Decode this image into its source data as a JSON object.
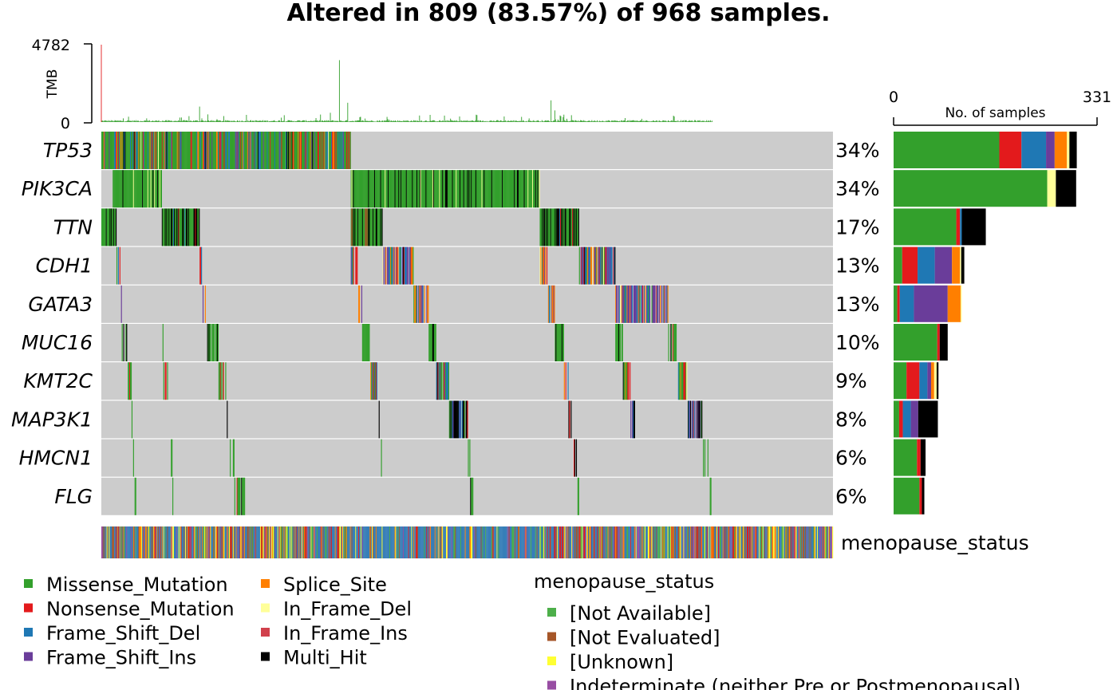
{
  "title": "Altered in 809 (83.57%) of 968 samples.",
  "tmb": {
    "label": "TMB",
    "axis_max_label": "4782",
    "axis_min_label": "0"
  },
  "samples_axis": {
    "label": "No. of samples",
    "min_label": "0",
    "max_label": "331"
  },
  "colors": {
    "Missense_Mutation": "#33a02c",
    "Nonsense_Mutation": "#e31a1c",
    "Frame_Shift_Del": "#1f78b4",
    "Frame_Shift_Ins": "#6a3d9a",
    "Splice_Site": "#ff7f00",
    "In_Frame_Del": "#ffff99",
    "In_Frame_Ins": "#d1404c",
    "Multi_Hit": "#000000",
    "background": "#cccccc",
    "annot_not_available": "#4daf4a",
    "annot_not_evaluated": "#a65628",
    "annot_unknown": "#ffff33",
    "annot_indeterminate": "#984ea3",
    "annot_post": "#377eb8",
    "annot_pre": "#e41a1c",
    "annot_peri": "#ff7f00"
  },
  "legend": {
    "variant_items": [
      "Missense_Mutation",
      "Nonsense_Mutation",
      "Frame_Shift_Del",
      "Frame_Shift_Ins",
      "Splice_Site",
      "In_Frame_Del",
      "In_Frame_Ins",
      "Multi_Hit"
    ],
    "annotation_title": "menopause_status",
    "annotation_items": [
      "[Not Available]",
      "[Not Evaluated]",
      "[Unknown]",
      "Indeterminate (neither Pre or Postmenopausal)"
    ]
  },
  "annotation_track_label": "menopause_status",
  "chart_data": {
    "type": "heatmap",
    "subtype": "oncoplot",
    "title": "Altered in 809 (83.57%) of 968 samples.",
    "total_samples": 968,
    "altered_samples": 809,
    "tmb_max": 4782,
    "barplot_xlim": [
      0,
      331
    ],
    "genes": [
      {
        "name": "TP53",
        "pct": "34%",
        "counts": {
          "Missense_Mutation": 172,
          "Nonsense_Mutation": 36,
          "Frame_Shift_Del": 40,
          "Frame_Shift_Ins": 14,
          "Splice_Site": 20,
          "In_Frame_Del": 4,
          "Multi_Hit": 12
        }
      },
      {
        "name": "PIK3CA",
        "pct": "34%",
        "counts": {
          "Missense_Mutation": 250,
          "In_Frame_Del": 14,
          "Multi_Hit": 33
        }
      },
      {
        "name": "TTN",
        "pct": "17%",
        "counts": {
          "Missense_Mutation": 102,
          "Nonsense_Mutation": 6,
          "Frame_Shift_Del": 3,
          "Multi_Hit": 39
        }
      },
      {
        "name": "CDH1",
        "pct": "13%",
        "counts": {
          "Missense_Mutation": 14,
          "Nonsense_Mutation": 25,
          "Frame_Shift_Del": 28,
          "Frame_Shift_Ins": 28,
          "Splice_Site": 13,
          "In_Frame_Del": 2,
          "Multi_Hit": 5
        }
      },
      {
        "name": "GATA3",
        "pct": "13%",
        "counts": {
          "Missense_Mutation": 6,
          "Nonsense_Mutation": 4,
          "Frame_Shift_Del": 23,
          "Frame_Shift_Ins": 55,
          "Splice_Site": 21,
          "In_Frame_Del": 2
        }
      },
      {
        "name": "MUC16",
        "pct": "10%",
        "counts": {
          "Missense_Mutation": 71,
          "Nonsense_Mutation": 4,
          "Multi_Hit": 13
        }
      },
      {
        "name": "KMT2C",
        "pct": "9%",
        "counts": {
          "Missense_Mutation": 21,
          "Nonsense_Mutation": 21,
          "Frame_Shift_Del": 13,
          "Frame_Shift_Ins": 6,
          "Splice_Site": 5,
          "In_Frame_Del": 4,
          "Multi_Hit": 3
        }
      },
      {
        "name": "MAP3K1",
        "pct": "8%",
        "counts": {
          "Missense_Mutation": 9,
          "Nonsense_Mutation": 6,
          "Frame_Shift_Del": 13,
          "Frame_Shift_Ins": 12,
          "Multi_Hit": 32
        }
      },
      {
        "name": "HMCN1",
        "pct": "6%",
        "counts": {
          "Missense_Mutation": 38,
          "Nonsense_Mutation": 6,
          "Multi_Hit": 8
        }
      },
      {
        "name": "FLG",
        "pct": "6%",
        "counts": {
          "Missense_Mutation": 42,
          "Nonsense_Mutation": 4,
          "Multi_Hit": 4
        }
      }
    ]
  }
}
